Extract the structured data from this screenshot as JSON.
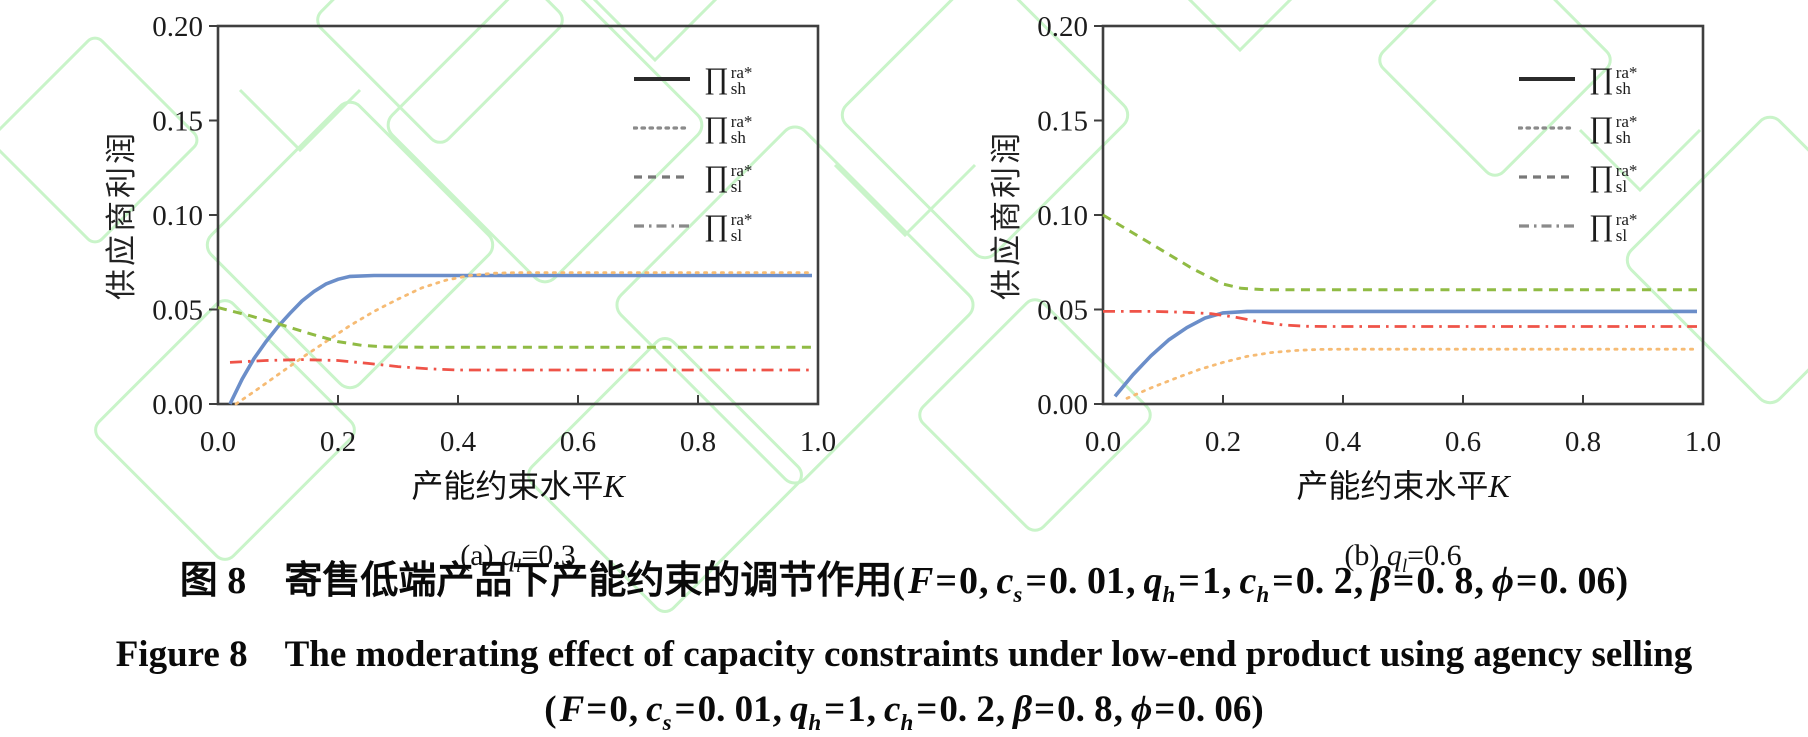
{
  "colors": {
    "axis": "#3f3f3f",
    "tick_text": "#1c1c1c",
    "watermark": "#c9f4c9",
    "legend_solid": "#2b2b2b",
    "legend_gray": "#8a8a8a"
  },
  "chart_data": [
    {
      "type": "line",
      "panel_label": {
        "prefix": "(a) ",
        "var": "q",
        "sub": "l",
        "rest": "=0.3"
      },
      "xlabel": {
        "zh": "产能约束水平",
        "var": "K"
      },
      "ylabel": "供应商利润",
      "xlim": [
        0,
        1
      ],
      "ylim": [
        0,
        0.2
      ],
      "xticks": [
        0,
        0.2,
        0.4,
        0.6,
        0.8,
        1.0
      ],
      "yticks": [
        0,
        0.05,
        0.1,
        0.15,
        0.2
      ],
      "xtick_labels": [
        "0.0",
        "0.2",
        "0.4",
        "0.6",
        "0.8",
        "1.0"
      ],
      "ytick_labels": [
        "0.00",
        "0.05",
        "0.10",
        "0.15",
        "0.20"
      ],
      "grid": false,
      "legend_position": "upper right",
      "series": [
        {
          "name": "sh-solid",
          "label": {
            "sym": "∏",
            "sup": "ra*",
            "sub": "sh"
          },
          "style": "solid",
          "color": "#6b8ec9",
          "legend_color": "#2b2b2b",
          "points": [
            [
              0.02,
              0.0
            ],
            [
              0.04,
              0.013
            ],
            [
              0.06,
              0.024
            ],
            [
              0.08,
              0.033
            ],
            [
              0.1,
              0.041
            ],
            [
              0.12,
              0.048
            ],
            [
              0.14,
              0.0545
            ],
            [
              0.16,
              0.0595
            ],
            [
              0.18,
              0.0635
            ],
            [
              0.2,
              0.066
            ],
            [
              0.22,
              0.0675
            ],
            [
              0.26,
              0.068
            ],
            [
              0.99,
              0.068
            ]
          ]
        },
        {
          "name": "sh-dotted",
          "label": {
            "sym": "∏",
            "sup": "ra*",
            "sub": "sh"
          },
          "style": "dotted",
          "color": "#f6bb74",
          "legend_color": "#8a8a8a",
          "points": [
            [
              0.03,
              0.0
            ],
            [
              0.06,
              0.0065
            ],
            [
              0.1,
              0.0155
            ],
            [
              0.14,
              0.0245
            ],
            [
              0.18,
              0.033
            ],
            [
              0.22,
              0.0415
            ],
            [
              0.26,
              0.049
            ],
            [
              0.3,
              0.0555
            ],
            [
              0.34,
              0.0615
            ],
            [
              0.38,
              0.0655
            ],
            [
              0.42,
              0.068
            ],
            [
              0.46,
              0.0692
            ],
            [
              0.5,
              0.0695
            ],
            [
              0.99,
              0.0695
            ]
          ]
        },
        {
          "name": "sl-dashed",
          "label": {
            "sym": "∏",
            "sup": "ra*",
            "sub": "sl"
          },
          "style": "dashed",
          "color": "#90bb44",
          "legend_color": "#787878",
          "points": [
            [
              0.0,
              0.051
            ],
            [
              0.05,
              0.047
            ],
            [
              0.1,
              0.0425
            ],
            [
              0.15,
              0.0375
            ],
            [
              0.2,
              0.033
            ],
            [
              0.24,
              0.031
            ],
            [
              0.28,
              0.0302
            ],
            [
              0.35,
              0.03
            ],
            [
              0.99,
              0.03
            ]
          ]
        },
        {
          "name": "sl-dashdot",
          "label": {
            "sym": "∏",
            "sup": "ra*",
            "sub": "sl"
          },
          "style": "dashdot",
          "color": "#ef5348",
          "legend_color": "#8a8a8a",
          "points": [
            [
              0.02,
              0.022
            ],
            [
              0.08,
              0.023
            ],
            [
              0.14,
              0.0235
            ],
            [
              0.2,
              0.023
            ],
            [
              0.25,
              0.0215
            ],
            [
              0.3,
              0.0198
            ],
            [
              0.35,
              0.0186
            ],
            [
              0.4,
              0.018
            ],
            [
              0.99,
              0.018
            ]
          ]
        }
      ]
    },
    {
      "type": "line",
      "panel_label": {
        "prefix": "(b) ",
        "var": "q",
        "sub": "l",
        "rest": "=0.6"
      },
      "xlabel": {
        "zh": "产能约束水平",
        "var": "K"
      },
      "ylabel": "供应商利润",
      "xlim": [
        0,
        1
      ],
      "ylim": [
        0,
        0.2
      ],
      "xticks": [
        0,
        0.2,
        0.4,
        0.6,
        0.8,
        1.0
      ],
      "yticks": [
        0,
        0.05,
        0.1,
        0.15,
        0.2
      ],
      "xtick_labels": [
        "0.0",
        "0.2",
        "0.4",
        "0.6",
        "0.8",
        "1.0"
      ],
      "ytick_labels": [
        "0.00",
        "0.05",
        "0.10",
        "0.15",
        "0.20"
      ],
      "grid": false,
      "legend_position": "upper right",
      "series": [
        {
          "name": "sh-solid",
          "label": {
            "sym": "∏",
            "sup": "ra*",
            "sub": "sh"
          },
          "style": "solid",
          "color": "#6b8ec9",
          "legend_color": "#2b2b2b",
          "points": [
            [
              0.02,
              0.004
            ],
            [
              0.05,
              0.0155
            ],
            [
              0.08,
              0.0255
            ],
            [
              0.11,
              0.034
            ],
            [
              0.14,
              0.0405
            ],
            [
              0.17,
              0.0455
            ],
            [
              0.2,
              0.0482
            ],
            [
              0.24,
              0.049
            ],
            [
              0.99,
              0.049
            ]
          ]
        },
        {
          "name": "sh-dotted",
          "label": {
            "sym": "∏",
            "sup": "ra*",
            "sub": "sh"
          },
          "style": "dotted",
          "color": "#f6bb74",
          "legend_color": "#8a8a8a",
          "points": [
            [
              0.04,
              0.003
            ],
            [
              0.08,
              0.0085
            ],
            [
              0.12,
              0.0135
            ],
            [
              0.16,
              0.0182
            ],
            [
              0.2,
              0.022
            ],
            [
              0.24,
              0.0252
            ],
            [
              0.28,
              0.0272
            ],
            [
              0.32,
              0.0283
            ],
            [
              0.36,
              0.0289
            ],
            [
              0.4,
              0.029
            ],
            [
              0.99,
              0.029
            ]
          ]
        },
        {
          "name": "sl-dashed",
          "label": {
            "sym": "∏",
            "sup": "ra*",
            "sub": "sl"
          },
          "style": "dashed",
          "color": "#90bb44",
          "legend_color": "#787878",
          "points": [
            [
              0.0,
              0.1
            ],
            [
              0.05,
              0.0905
            ],
            [
              0.1,
              0.081
            ],
            [
              0.15,
              0.0715
            ],
            [
              0.2,
              0.0635
            ],
            [
              0.23,
              0.0612
            ],
            [
              0.27,
              0.0605
            ],
            [
              0.99,
              0.0605
            ]
          ]
        },
        {
          "name": "sl-dashdot",
          "label": {
            "sym": "∏",
            "sup": "ra*",
            "sub": "sl"
          },
          "style": "dashdot",
          "color": "#ef5348",
          "legend_color": "#8a8a8a",
          "points": [
            [
              0.0,
              0.049
            ],
            [
              0.08,
              0.049
            ],
            [
              0.14,
              0.0485
            ],
            [
              0.18,
              0.0478
            ],
            [
              0.22,
              0.046
            ],
            [
              0.26,
              0.0435
            ],
            [
              0.3,
              0.0418
            ],
            [
              0.34,
              0.0411
            ],
            [
              0.38,
              0.041
            ],
            [
              0.99,
              0.041
            ]
          ]
        }
      ]
    }
  ],
  "caption": {
    "zh_prefix": "图 8",
    "gap": "　",
    "zh_title": "寄售低端产品下产能约束的调节作用",
    "en_prefix": "Figure 8",
    "en_title": "The moderating effect of capacity constraints under low-end product using agency selling",
    "paren_open": "(",
    "paren_close": ")",
    "separator": ",",
    "params": [
      {
        "var": "F",
        "value": "0"
      },
      {
        "var": "c",
        "sub": "s",
        "value": "0. 01"
      },
      {
        "var": "q",
        "sub": "h",
        "value": "1"
      },
      {
        "var": "c",
        "sub": "h",
        "value": "0. 2"
      },
      {
        "var": "β",
        "value": "0. 8"
      },
      {
        "var": "ϕ",
        "value": "0. 06"
      }
    ]
  }
}
